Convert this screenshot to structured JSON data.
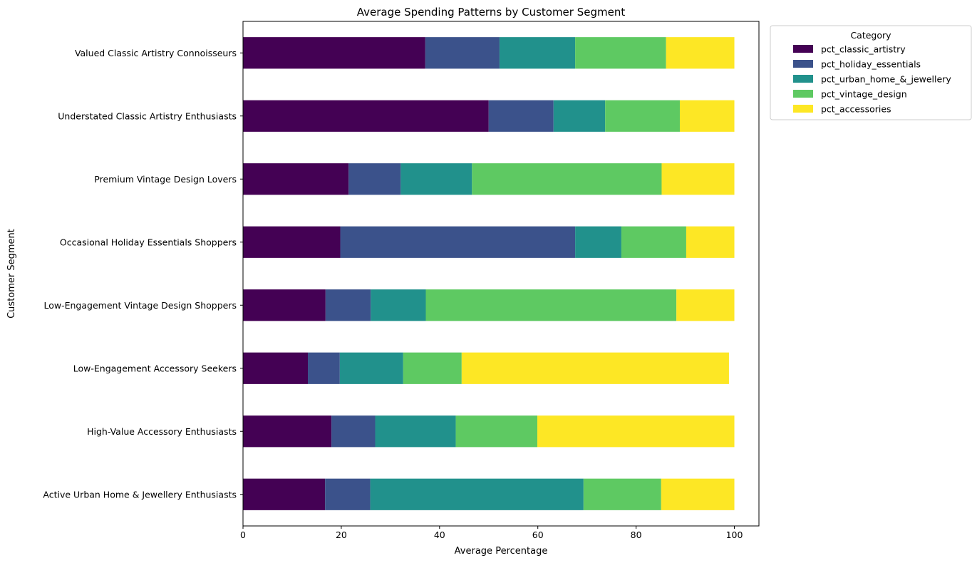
{
  "chart_data": {
    "type": "bar",
    "orientation": "horizontal",
    "stacked": true,
    "title": "Average Spending Patterns by Customer Segment",
    "xlabel": "Average Percentage",
    "ylabel": "Customer Segment",
    "xlim": [
      0,
      105
    ],
    "xticks": [
      0,
      20,
      40,
      60,
      80,
      100
    ],
    "grid": false,
    "legend": {
      "title": "Category",
      "placement": "outside-top-right"
    },
    "categories": [
      "Valued Classic Artistry Connoisseurs",
      "Understated Classic Artistry Enthusiasts",
      "Premium Vintage Design Lovers",
      "Occasional Holiday Essentials Shoppers",
      "Low-Engagement Vintage Design Shoppers",
      "Low-Engagement Accessory Seekers",
      "High-Value Accessory Enthusiasts",
      "Active Urban Home & Jewellery Enthusiasts"
    ],
    "series": [
      {
        "name": "pct_classic_artistry",
        "color": "#440154",
        "values": [
          37.1,
          50.0,
          21.5,
          19.8,
          16.8,
          13.2,
          18.0,
          16.7
        ]
      },
      {
        "name": "pct_holiday_essentials",
        "color": "#3b528b",
        "values": [
          15.1,
          13.2,
          10.6,
          47.8,
          9.2,
          6.5,
          8.9,
          9.2
        ]
      },
      {
        "name": "pct_urban_home_&_jewellery",
        "color": "#21918c",
        "values": [
          15.4,
          10.5,
          14.5,
          9.4,
          11.2,
          12.9,
          16.4,
          43.4
        ]
      },
      {
        "name": "pct_vintage_design",
        "color": "#5ec962",
        "values": [
          18.5,
          15.2,
          38.6,
          13.2,
          51.0,
          11.9,
          16.6,
          15.8
        ]
      },
      {
        "name": "pct_accessories",
        "color": "#fde725",
        "values": [
          13.9,
          11.1,
          14.8,
          9.8,
          11.8,
          54.4,
          40.1,
          14.9
        ]
      }
    ]
  }
}
